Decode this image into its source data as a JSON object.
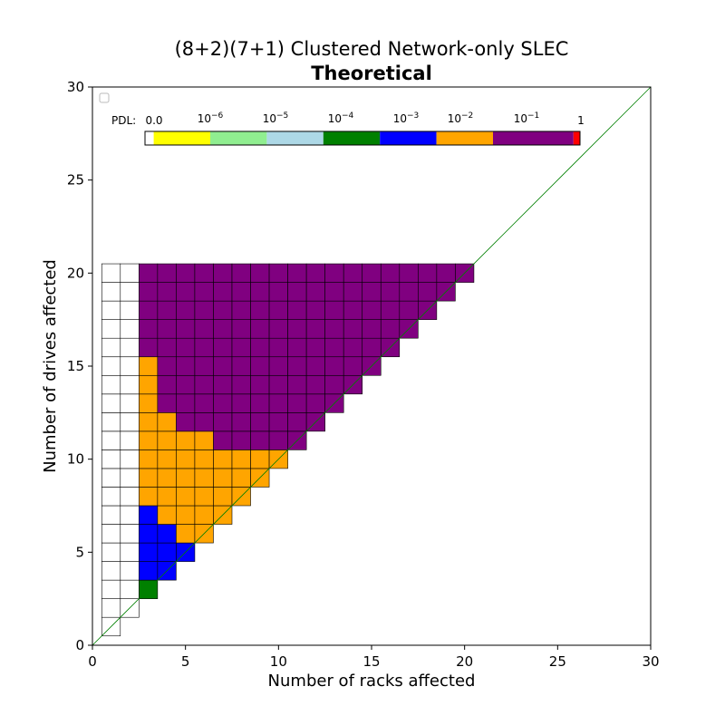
{
  "chart_data": {
    "type": "heatmap",
    "title": "(8+2)(7+1) Clustered Network-only SLEC",
    "subtitle": "Theoretical",
    "xlabel": "Number of racks affected",
    "ylabel": "Number of drives affected",
    "xlim": [
      0,
      30
    ],
    "ylim": [
      0,
      30
    ],
    "xticks": [
      "0",
      "5",
      "10",
      "15",
      "20",
      "25",
      "30"
    ],
    "yticks": [
      "0",
      "5",
      "10",
      "15",
      "20",
      "25",
      "30"
    ],
    "diagonal": {
      "from": [
        0,
        0
      ],
      "to": [
        30,
        30
      ],
      "color": "#008000"
    },
    "legend_placement": "upper-left (empty)",
    "colorbar": {
      "prefix": "PDL:",
      "labels": [
        {
          "base": "0.0",
          "exp": ""
        },
        {
          "base": "10",
          "exp": "−6"
        },
        {
          "base": "10",
          "exp": "−5"
        },
        {
          "base": "10",
          "exp": "−4"
        },
        {
          "base": "10",
          "exp": "−3"
        },
        {
          "base": "10",
          "exp": "−2"
        },
        {
          "base": "10",
          "exp": "−1"
        },
        {
          "base": "1",
          "exp": ""
        }
      ],
      "segments": [
        {
          "name": "zero",
          "color": "#ffffff",
          "extent": [
            0,
            0.02
          ]
        },
        {
          "name": "1e-6",
          "color": "#ffff00",
          "extent": [
            0.02,
            0.15
          ]
        },
        {
          "name": "1e-5",
          "color": "#90ee90",
          "extent": [
            0.15,
            0.28
          ]
        },
        {
          "name": "1e-4",
          "color": "#add8e6",
          "extent": [
            0.28,
            0.41
          ]
        },
        {
          "name": "1e-3",
          "color": "#008000",
          "extent": [
            0.41,
            0.54
          ]
        },
        {
          "name": "1e-2",
          "color": "#0000ff",
          "extent": [
            0.54,
            0.67
          ]
        },
        {
          "name": "1e-1",
          "color": "#ffa500",
          "extent": [
            0.67,
            0.8
          ]
        },
        {
          "name": "1",
          "color": "#800080",
          "extent": [
            0.8,
            0.985
          ]
        },
        {
          "name": "max",
          "color": "#ff0000",
          "extent": [
            0.985,
            1.0
          ]
        }
      ]
    },
    "colors": {
      "white": "#ffffff",
      "green": "#008000",
      "blue": "#0000ff",
      "orange": "#ffa500",
      "purple": "#800080"
    },
    "cells": [
      {
        "x": 1,
        "y_from": 1,
        "y_to": 20,
        "color": "white"
      },
      {
        "x": 2,
        "y_from": 2,
        "y_to": 20,
        "color": "white"
      },
      {
        "x": 3,
        "y_from": 3,
        "y_to": 3,
        "color": "green"
      },
      {
        "x": 3,
        "y_from": 4,
        "y_to": 7,
        "color": "blue"
      },
      {
        "x": 3,
        "y_from": 8,
        "y_to": 15,
        "color": "orange"
      },
      {
        "x": 3,
        "y_from": 16,
        "y_to": 20,
        "color": "purple"
      },
      {
        "x": 4,
        "y_from": 4,
        "y_to": 6,
        "color": "blue"
      },
      {
        "x": 4,
        "y_from": 7,
        "y_to": 12,
        "color": "orange"
      },
      {
        "x": 4,
        "y_from": 13,
        "y_to": 20,
        "color": "purple"
      },
      {
        "x": 5,
        "y_from": 5,
        "y_to": 5,
        "color": "blue"
      },
      {
        "x": 5,
        "y_from": 6,
        "y_to": 11,
        "color": "orange"
      },
      {
        "x": 5,
        "y_from": 12,
        "y_to": 20,
        "color": "purple"
      },
      {
        "x": 6,
        "y_from": 6,
        "y_to": 11,
        "color": "orange"
      },
      {
        "x": 6,
        "y_from": 12,
        "y_to": 20,
        "color": "purple"
      },
      {
        "x": 7,
        "y_from": 7,
        "y_to": 10,
        "color": "orange"
      },
      {
        "x": 7,
        "y_from": 11,
        "y_to": 20,
        "color": "purple"
      },
      {
        "x": 8,
        "y_from": 8,
        "y_to": 10,
        "color": "orange"
      },
      {
        "x": 8,
        "y_from": 11,
        "y_to": 20,
        "color": "purple"
      },
      {
        "x": 9,
        "y_from": 9,
        "y_to": 10,
        "color": "orange"
      },
      {
        "x": 9,
        "y_from": 11,
        "y_to": 20,
        "color": "purple"
      },
      {
        "x": 10,
        "y_from": 10,
        "y_to": 10,
        "color": "orange"
      },
      {
        "x": 10,
        "y_from": 11,
        "y_to": 20,
        "color": "purple"
      },
      {
        "x": 11,
        "y_from": 11,
        "y_to": 20,
        "color": "purple"
      },
      {
        "x": 12,
        "y_from": 12,
        "y_to": 20,
        "color": "purple"
      },
      {
        "x": 13,
        "y_from": 13,
        "y_to": 20,
        "color": "purple"
      },
      {
        "x": 14,
        "y_from": 14,
        "y_to": 20,
        "color": "purple"
      },
      {
        "x": 15,
        "y_from": 15,
        "y_to": 20,
        "color": "purple"
      },
      {
        "x": 16,
        "y_from": 16,
        "y_to": 20,
        "color": "purple"
      },
      {
        "x": 17,
        "y_from": 17,
        "y_to": 20,
        "color": "purple"
      },
      {
        "x": 18,
        "y_from": 18,
        "y_to": 20,
        "color": "purple"
      },
      {
        "x": 19,
        "y_from": 19,
        "y_to": 20,
        "color": "purple"
      },
      {
        "x": 20,
        "y_from": 20,
        "y_to": 20,
        "color": "purple"
      }
    ]
  }
}
